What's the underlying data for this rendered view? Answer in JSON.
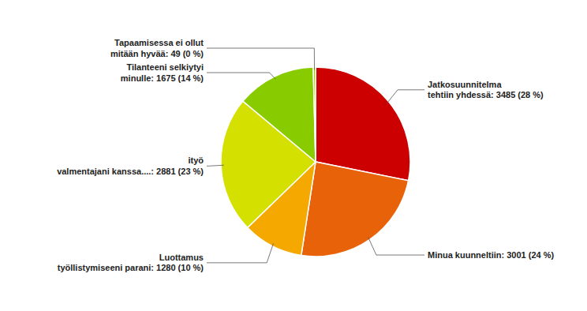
{
  "chart_data": {
    "type": "pie",
    "values": [
      3485,
      3001,
      1280,
      2881,
      1675,
      49
    ],
    "value_labels": [
      "Jatkosuunnitelma\ntehtiin yhdessä: 3485 (28 %)",
      "Minua kuunneltiin: 3001 (24 %)",
      "Luottamus\ntyöllistymiseeni parani: 1280 (10 %)",
      "ityö\nvalmentajani kanssa....: 2881 (23 %)",
      "Tilanteeni selkiytyi\nminulle: 1675 (14 %)",
      "Tapaamisessa ei ollut\nmitään hyvää: 49 (0 %)"
    ],
    "colors": [
      "#cc0000",
      "#e8620a",
      "#f5a800",
      "#d4e000",
      "#88cc00",
      "#9dcc00"
    ],
    "data_labels": true
  }
}
